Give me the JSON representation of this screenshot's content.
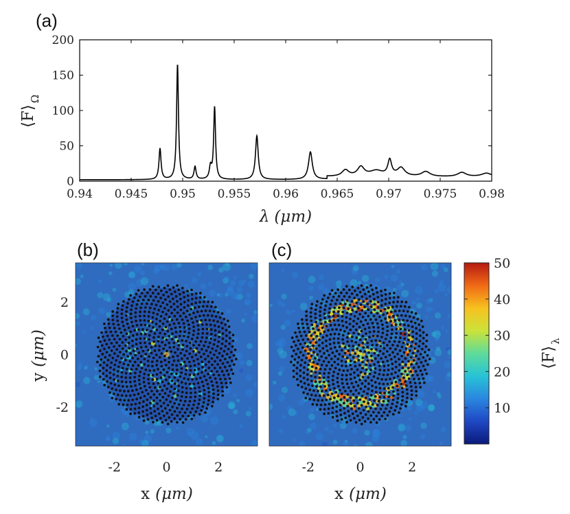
{
  "colors": {
    "field_bg": "#2f6cc0",
    "dots": "#141414",
    "axis": "#000000"
  },
  "chart_data": [
    {
      "type": "line",
      "panel_label": "(a)",
      "xlabel_symbol": "λ",
      "xlabel_unit": "(μm)",
      "ylabel_main": "⟨F⟩",
      "ylabel_sub": "Ω",
      "xlim": [
        0.94,
        0.98
      ],
      "ylim": [
        0,
        200
      ],
      "x_ticks": [
        "0.94",
        "0.945",
        "0.95",
        "0.955",
        "0.96",
        "0.965",
        "0.97",
        "0.975",
        "0.98"
      ],
      "y_ticks": [
        "0",
        "50",
        "100",
        "150",
        "200"
      ],
      "baseline": 2,
      "peaks": [
        {
          "x": 0.9478,
          "height": 44,
          "width": 0.00012
        },
        {
          "x": 0.9495,
          "height": 163,
          "width": 0.00011
        },
        {
          "x": 0.9512,
          "height": 18,
          "width": 0.00012
        },
        {
          "x": 0.9527,
          "height": 17,
          "width": 0.00013
        },
        {
          "x": 0.9531,
          "height": 102,
          "width": 0.00011
        },
        {
          "x": 0.9572,
          "height": 62,
          "width": 0.00016
        },
        {
          "x": 0.9624,
          "height": 39,
          "width": 0.00022
        },
        {
          "x": 0.9658,
          "height": 9,
          "width": 0.0004
        },
        {
          "x": 0.9673,
          "height": 13,
          "width": 0.0004
        },
        {
          "x": 0.9688,
          "height": 8,
          "width": 0.0008
        },
        {
          "x": 0.9701,
          "height": 22,
          "width": 0.00022
        },
        {
          "x": 0.9712,
          "height": 12,
          "width": 0.00045
        },
        {
          "x": 0.9736,
          "height": 7,
          "width": 0.0005
        },
        {
          "x": 0.9771,
          "height": 6,
          "width": 0.0005
        },
        {
          "x": 0.9795,
          "height": 5,
          "width": 0.0006
        }
      ]
    },
    {
      "type": "heatmap",
      "panel_label": "(b)",
      "xlabel_var": "x",
      "xlabel_unit": "(μm)",
      "ylabel_var": "y",
      "ylabel_unit": "(μm)",
      "xlim": [
        -3.5,
        3.5
      ],
      "ylim": [
        -3.5,
        3.5
      ],
      "x_ticks": [
        "-2",
        "0",
        "2"
      ],
      "y_ticks": [
        "2",
        "0",
        "-2"
      ],
      "lattice": "golden-angle spiral",
      "dot_count": 820,
      "lattice_radius": 2.7,
      "hotspot": "center"
    },
    {
      "type": "heatmap",
      "panel_label": "(c)",
      "xlabel_var": "x",
      "xlabel_unit": "(μm)",
      "xlim": [
        -3.5,
        3.5
      ],
      "ylim": [
        -3.5,
        3.5
      ],
      "x_ticks": [
        "-2",
        "0",
        "2"
      ],
      "lattice": "golden-angle spiral",
      "dot_count": 820,
      "lattice_radius": 2.7,
      "hotspot": "ring",
      "ring_radius": 1.9
    },
    {
      "type": "colorbar",
      "label_main": "⟨F⟩",
      "label_sub": "λ",
      "range": [
        0,
        50
      ],
      "ticks": [
        "50",
        "40",
        "30",
        "20",
        "10"
      ],
      "tick_values": [
        50,
        40,
        30,
        20,
        10
      ],
      "colormap": [
        "#0b1a7a",
        "#1f48c4",
        "#2a86e0",
        "#27c3d6",
        "#5fdb9a",
        "#cbe23a",
        "#f7c11f",
        "#f06a16",
        "#b51a12"
      ]
    }
  ]
}
